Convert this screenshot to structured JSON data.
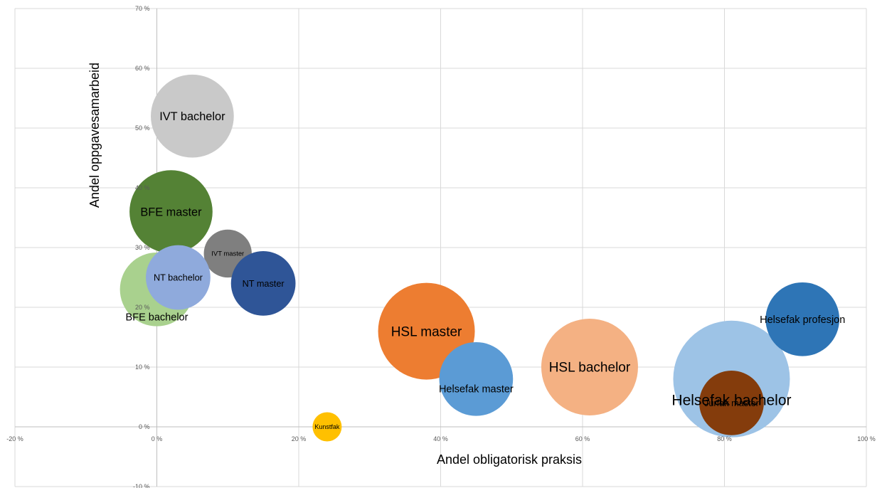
{
  "chart_data": {
    "type": "scatter",
    "subtype": "bubble",
    "title": "",
    "xlabel": "Andel obligatorisk praksis",
    "ylabel": "Andel oppgavesamarbeid",
    "xlim": [
      -20,
      100
    ],
    "ylim": [
      -10,
      70
    ],
    "x_ticks": [
      -20,
      0,
      20,
      40,
      60,
      80,
      100
    ],
    "y_ticks": [
      -10,
      0,
      10,
      20,
      30,
      40,
      50,
      60,
      70
    ],
    "x_tick_labels": [
      "-20 %",
      "0 %",
      "20 %",
      "40 %",
      "60 %",
      "80 %",
      "100 %"
    ],
    "y_tick_labels": [
      "-10 %",
      "0 %",
      "10 %",
      "20 %",
      "30 %",
      "40 %",
      "50 %",
      "60 %",
      "70 %"
    ],
    "grid": true,
    "legend": "none",
    "series": [
      {
        "name": "Helsefak bachelor",
        "x": 81,
        "y": 8,
        "size": 1.6,
        "color": "#9DC3E6",
        "label_dy": -3.5
      },
      {
        "name": "IVT bachelor",
        "x": 5,
        "y": 52,
        "size": 0.81,
        "color": "#C9C9C9"
      },
      {
        "name": "BFE master",
        "x": 2,
        "y": 36,
        "size": 0.81,
        "color": "#548235"
      },
      {
        "name": "BFE bachelor",
        "x": 0,
        "y": 23,
        "size": 0.64,
        "color": "#A9D18E",
        "label_dy": -4.6
      },
      {
        "name": "IVT master",
        "x": 10,
        "y": 29,
        "size": 0.27,
        "color": "#7F7F7F"
      },
      {
        "name": "NT bachelor",
        "x": 3,
        "y": 25,
        "size": 0.49,
        "color": "#8FAADC"
      },
      {
        "name": "NT master",
        "x": 15,
        "y": 24,
        "size": 0.49,
        "color": "#2F5597"
      },
      {
        "name": "Kunstfak",
        "x": 24,
        "y": 0,
        "size": 0.1,
        "color": "#FFC000"
      },
      {
        "name": "HSL master",
        "x": 38,
        "y": 16,
        "size": 1.1,
        "color": "#ED7D31"
      },
      {
        "name": "Helsefak master",
        "x": 45,
        "y": 8,
        "size": 0.64,
        "color": "#5B9BD5",
        "label_dy": -1.6
      },
      {
        "name": "HSL bachelor",
        "x": 61,
        "y": 10,
        "size": 1.1,
        "color": "#F4B183"
      },
      {
        "name": "Helsefak profesjon",
        "x": 91,
        "y": 18,
        "size": 0.64,
        "color": "#2E75B6"
      },
      {
        "name": "Jurfak master",
        "x": 81,
        "y": 4,
        "size": 0.49,
        "color": "#843C0C"
      }
    ]
  }
}
